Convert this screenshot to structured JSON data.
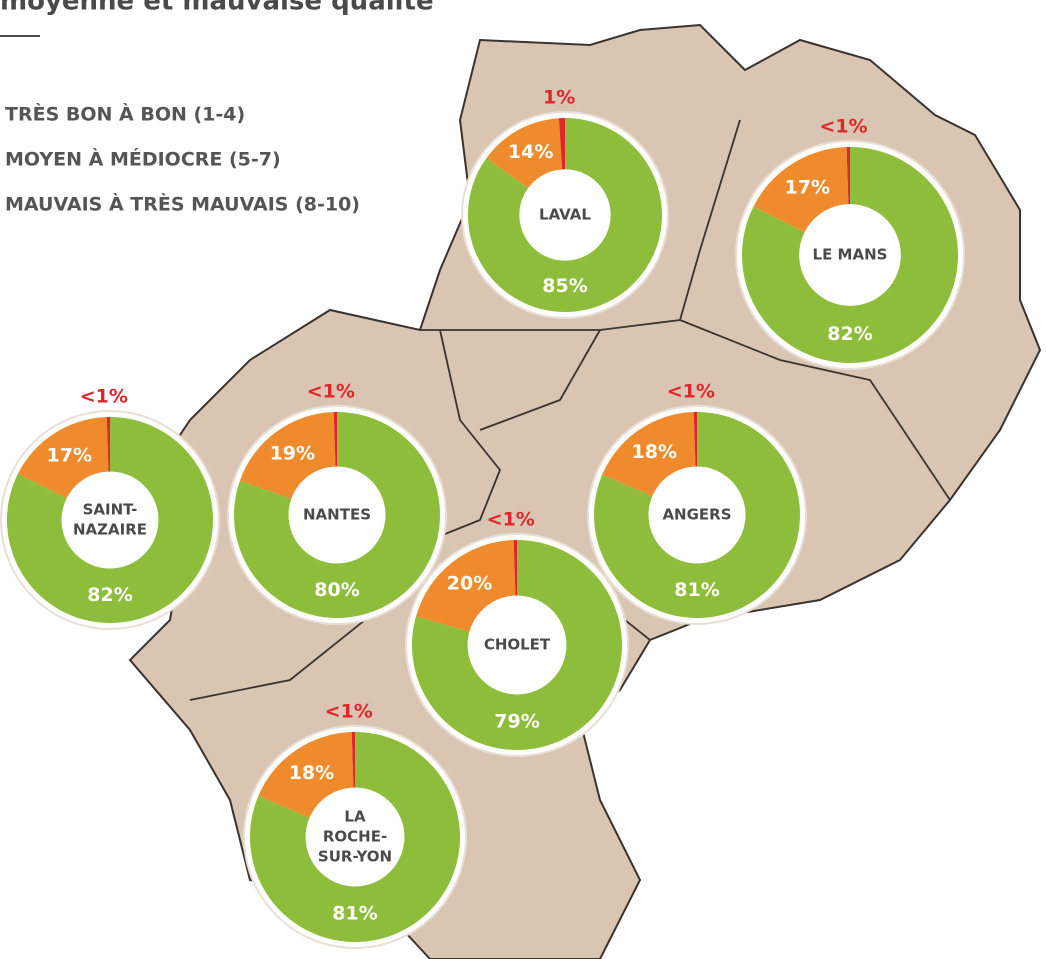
{
  "header": {
    "title": "moyenne et mauvaise qualité"
  },
  "legend": [
    {
      "label": "TRÈS BON À BON (1-4)",
      "color": "#8dbd3a"
    },
    {
      "label": "MOYEN À MÉDIOCRE (5-7)",
      "color": "#ef8b2c"
    },
    {
      "label": "MAUVAIS À TRÈS MAUVAIS (8-10)",
      "color": "#e0262c"
    }
  ],
  "chart_data": [
    {
      "type": "donut",
      "title": [
        "LAVAL"
      ],
      "values": [
        85,
        14,
        1
      ],
      "value_labels": [
        "85%",
        "14%",
        "1%"
      ]
    },
    {
      "type": "donut",
      "title": [
        "LE MANS"
      ],
      "values": [
        82,
        17,
        0.5
      ],
      "value_labels": [
        "82%",
        "17%",
        "<1%"
      ]
    },
    {
      "type": "donut",
      "title": [
        "SAINT-",
        "NAZAIRE"
      ],
      "values": [
        82,
        17,
        0.5
      ],
      "value_labels": [
        "82%",
        "17%",
        "<1%"
      ]
    },
    {
      "type": "donut",
      "title": [
        "NANTES"
      ],
      "values": [
        80,
        19,
        0.5
      ],
      "value_labels": [
        "80%",
        "19%",
        "<1%"
      ]
    },
    {
      "type": "donut",
      "title": [
        "ANGERS"
      ],
      "values": [
        81,
        18,
        0.5
      ],
      "value_labels": [
        "81%",
        "18%",
        "<1%"
      ]
    },
    {
      "type": "donut",
      "title": [
        "CHOLET"
      ],
      "values": [
        79,
        20,
        0.5
      ],
      "value_labels": [
        "79%",
        "20%",
        "<1%"
      ]
    },
    {
      "type": "donut",
      "title": [
        "LA",
        "ROCHE-",
        "SUR-YON"
      ],
      "values": [
        81,
        18,
        0.5
      ],
      "value_labels": [
        "81%",
        "18%",
        "<1%"
      ]
    }
  ]
}
